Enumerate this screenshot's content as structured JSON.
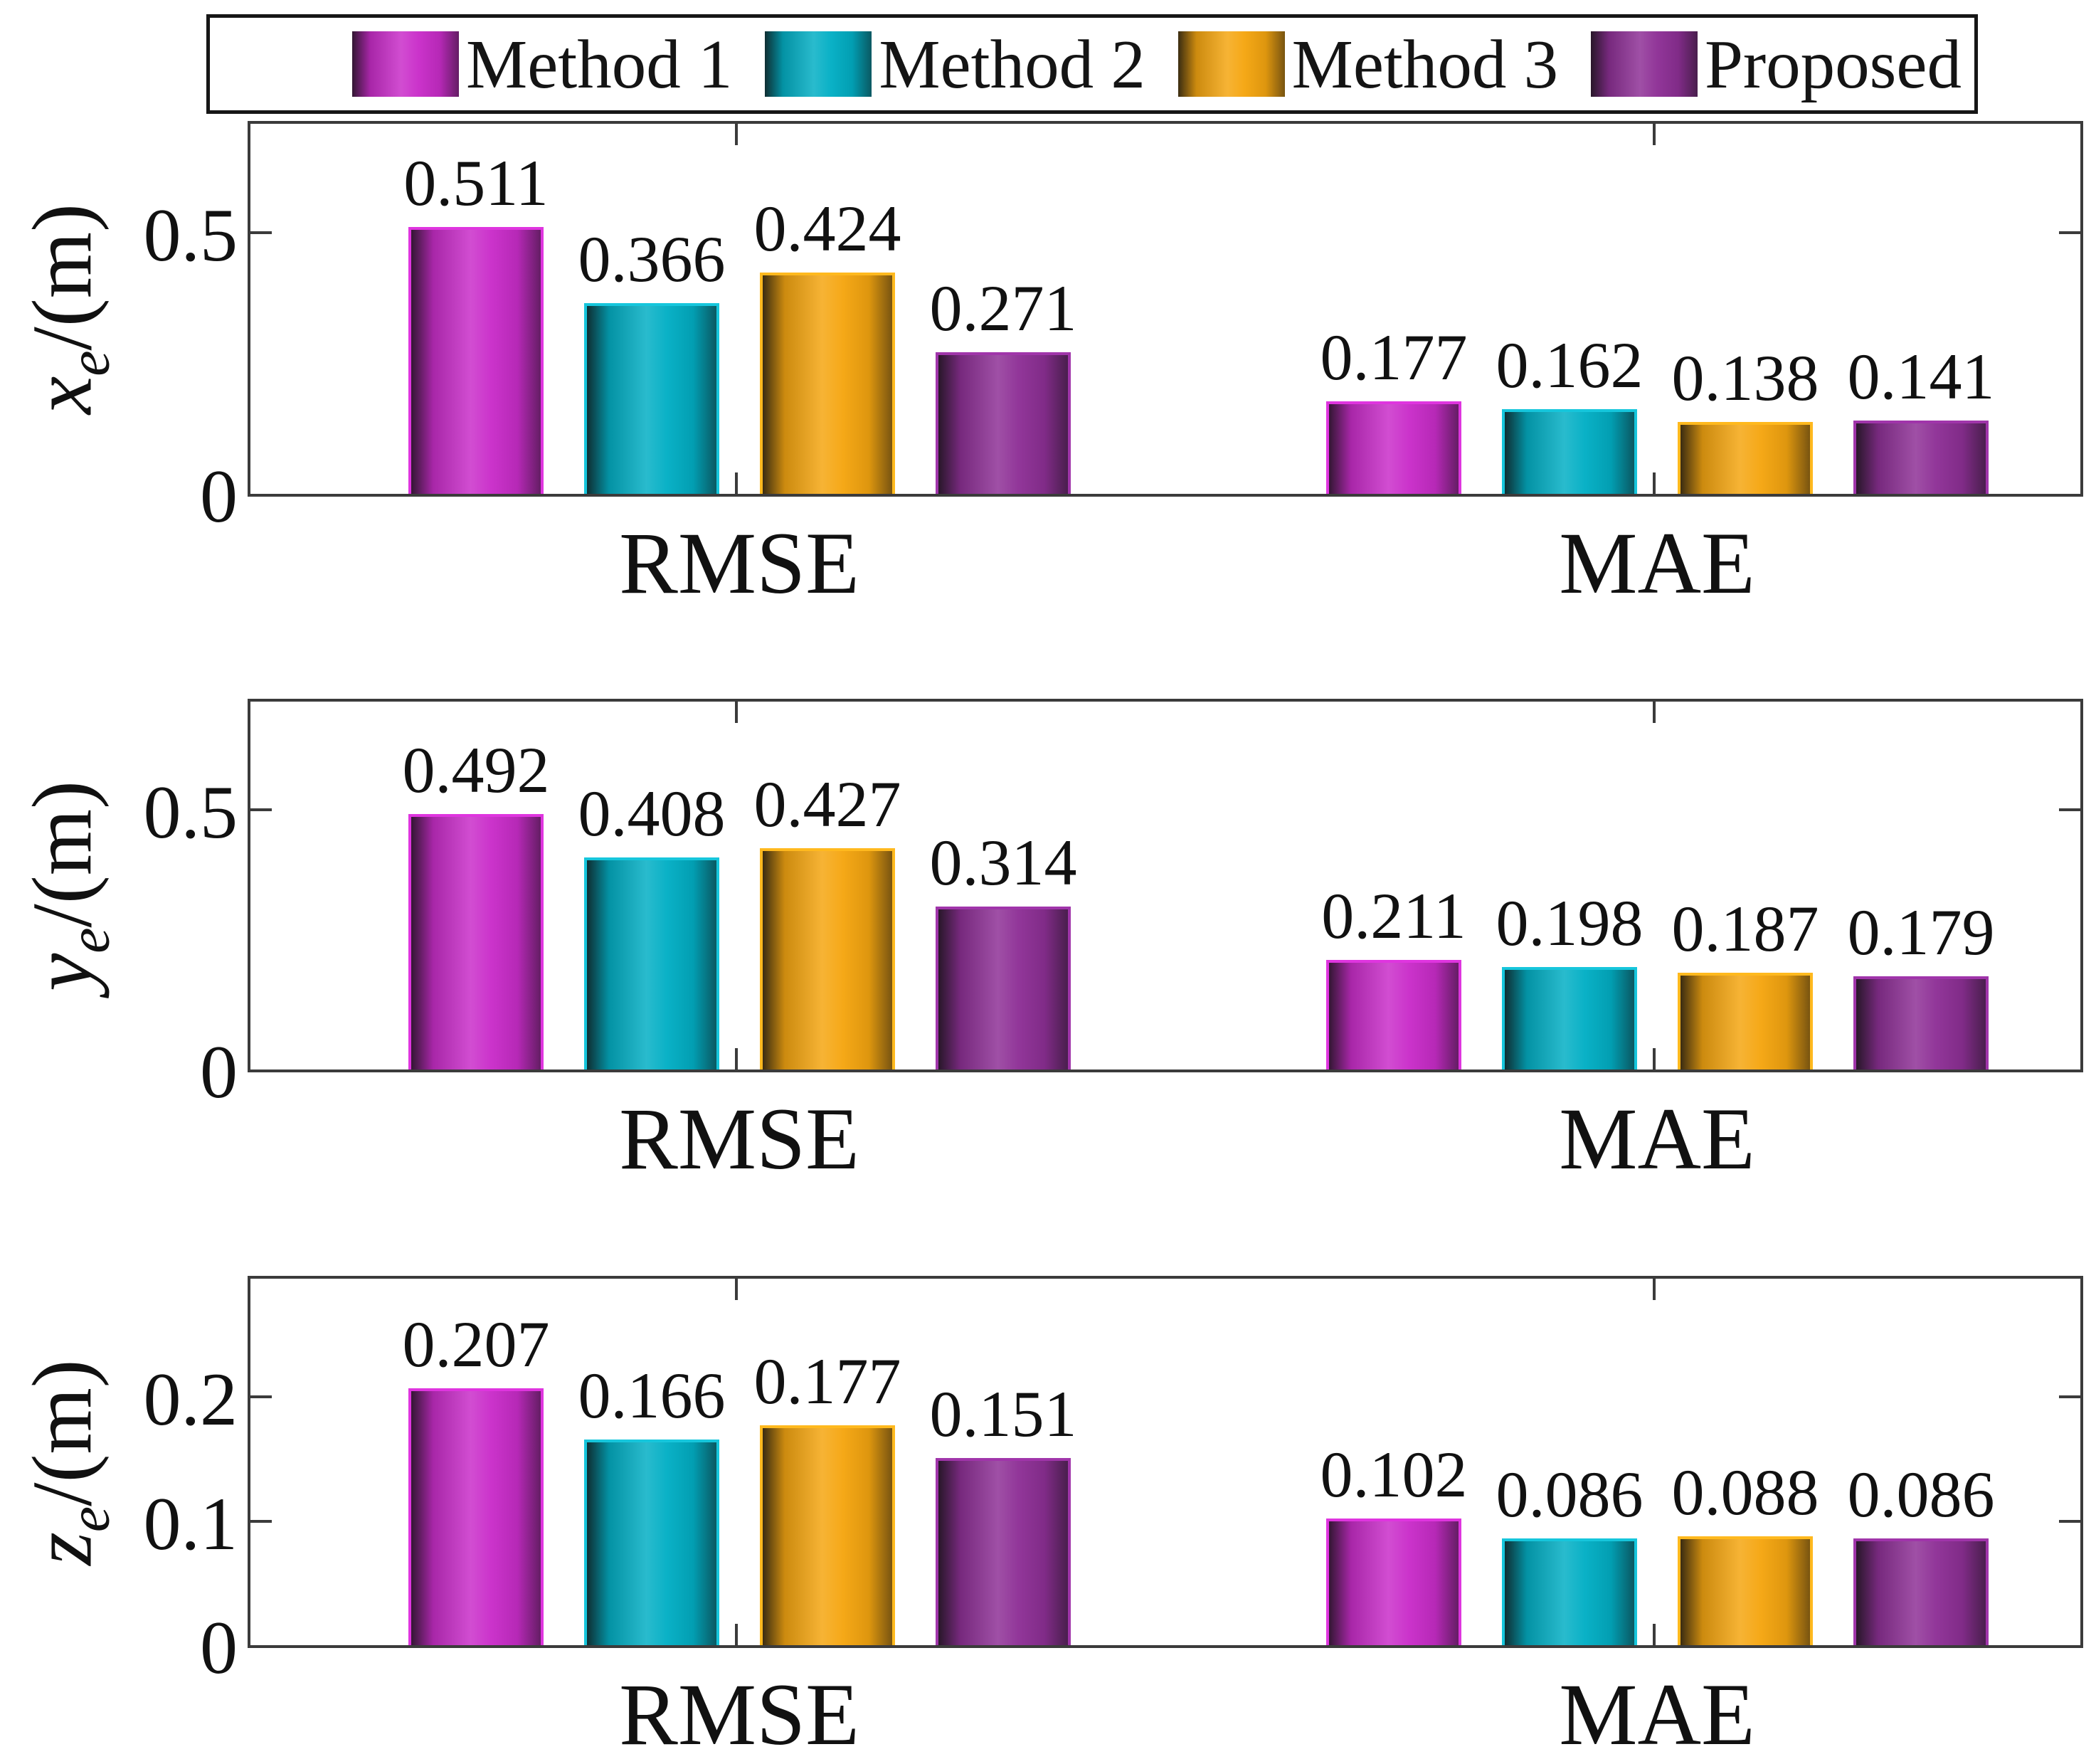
{
  "figure": {
    "background": "#ffffff",
    "axis_color": "#3b3b3b",
    "text_color": "#111111"
  },
  "legend": {
    "items": [
      {
        "label": "Method 1",
        "color": "#C92BC9",
        "edge": "#DF35DF"
      },
      {
        "label": "Method 2",
        "color": "#00AEC4",
        "edge": "#16C6DC"
      },
      {
        "label": "Method 3",
        "color": "#F5A50E",
        "edge": "#FFB91E"
      },
      {
        "label": "Proposed",
        "color": "#8D2E95",
        "edge": "#A035AA"
      }
    ]
  },
  "chart_data": [
    {
      "type": "bar",
      "ylabel": {
        "var": "x",
        "sub": "e",
        "unit": "/(m)"
      },
      "categories": [
        "RMSE",
        "MAE"
      ],
      "series": [
        {
          "name": "Method 1",
          "values": [
            0.511,
            0.177
          ]
        },
        {
          "name": "Method 2",
          "values": [
            0.366,
            0.162
          ]
        },
        {
          "name": "Method 3",
          "values": [
            0.424,
            0.138
          ]
        },
        {
          "name": "Proposed",
          "values": [
            0.271,
            0.141
          ]
        }
      ],
      "yticks": [
        {
          "value": 0,
          "label": "0"
        },
        {
          "value": 0.5,
          "label": "0.5"
        }
      ],
      "ylim": [
        0,
        0.72
      ],
      "grid": false,
      "value_labels": true,
      "legend_position": "top"
    },
    {
      "type": "bar",
      "ylabel": {
        "var": "y",
        "sub": "e",
        "unit": "/(m)"
      },
      "categories": [
        "RMSE",
        "MAE"
      ],
      "series": [
        {
          "name": "Method 1",
          "values": [
            0.492,
            0.211
          ]
        },
        {
          "name": "Method 2",
          "values": [
            0.408,
            0.198
          ]
        },
        {
          "name": "Method 3",
          "values": [
            0.427,
            0.187
          ]
        },
        {
          "name": "Proposed",
          "values": [
            0.314,
            0.179
          ]
        }
      ],
      "yticks": [
        {
          "value": 0,
          "label": "0"
        },
        {
          "value": 0.5,
          "label": "0.5"
        }
      ],
      "ylim": [
        0,
        0.72
      ],
      "grid": false,
      "value_labels": true
    },
    {
      "type": "bar",
      "ylabel": {
        "var": "z",
        "sub": "e",
        "unit": "/(m)"
      },
      "categories": [
        "RMSE",
        "MAE"
      ],
      "series": [
        {
          "name": "Method 1",
          "values": [
            0.207,
            0.102
          ]
        },
        {
          "name": "Method 2",
          "values": [
            0.166,
            0.086
          ]
        },
        {
          "name": "Method 3",
          "values": [
            0.177,
            0.088
          ]
        },
        {
          "name": "Proposed",
          "values": [
            0.151,
            0.086
          ]
        }
      ],
      "yticks": [
        {
          "value": 0,
          "label": "0"
        },
        {
          "value": 0.1,
          "label": "0.1"
        },
        {
          "value": 0.2,
          "label": "0.2"
        }
      ],
      "ylim": [
        0,
        0.3
      ],
      "grid": false,
      "value_labels": true
    }
  ]
}
